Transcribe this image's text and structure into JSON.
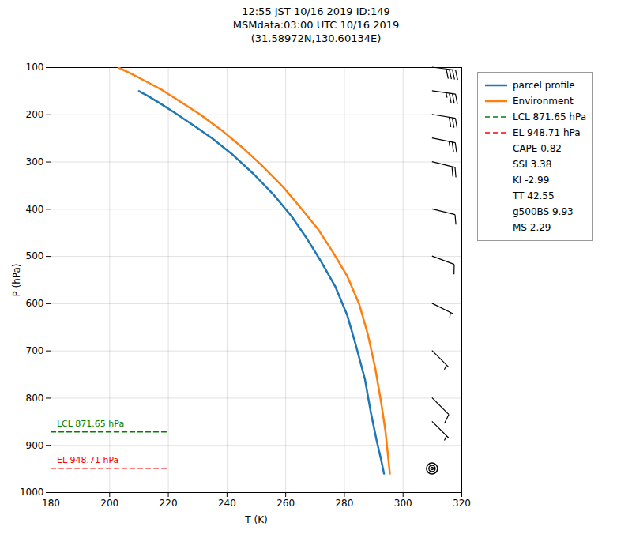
{
  "chart_data": {
    "type": "line",
    "title": "12:55 JST 10/16 2019  ID:149\nMSMdata:03:00 UTC 10/16 2019\n(31.58972N,130.60134E)",
    "xlabel": "T (K)",
    "ylabel": "P (hPa)",
    "xlim": [
      180,
      320
    ],
    "ylim": [
      1000,
      100
    ],
    "xticks": [
      180,
      200,
      220,
      240,
      260,
      280,
      300,
      320
    ],
    "yticks": [
      100,
      200,
      300,
      400,
      500,
      600,
      700,
      800,
      900,
      1000
    ],
    "grid": true,
    "legend": "right",
    "series": [
      {
        "name": "parcel profile",
        "color": "#1f77b4",
        "line_style": "solid",
        "x": [
          210,
          213,
          217,
          222,
          228,
          235,
          242,
          249,
          256,
          262,
          267,
          272,
          277,
          281,
          284,
          287,
          289,
          291,
          292.5,
          293.5
        ],
        "values": [
          150,
          160,
          175,
          195,
          220,
          250,
          285,
          325,
          370,
          415,
          460,
          510,
          565,
          625,
          690,
          760,
          830,
          890,
          930,
          960
        ]
      },
      {
        "name": "Environment",
        "color": "#ff7f0e",
        "line_style": "solid",
        "x": [
          203,
          207,
          212,
          218,
          224,
          231,
          238,
          245,
          252,
          259,
          265,
          271,
          276,
          281,
          285,
          288,
          290.5,
          292.5,
          294,
          295.5
        ],
        "values": [
          100,
          112,
          128,
          148,
          172,
          200,
          232,
          268,
          308,
          352,
          396,
          442,
          490,
          542,
          600,
          665,
          736,
          808,
          870,
          960
        ]
      },
      {
        "name": "LCL 871.65 hPa",
        "color": "green",
        "line_style": "dashed",
        "x": [
          180,
          220
        ],
        "values": [
          871.65,
          871.65
        ]
      },
      {
        "name": "EL 948.71 hPa",
        "color": "red",
        "line_style": "dashed",
        "x": [
          180,
          220
        ],
        "values": [
          948.71,
          948.71
        ]
      }
    ],
    "annotations": [
      {
        "text": "LCL 871.65 hPa",
        "x": 182,
        "y": 859.65,
        "color": "green"
      },
      {
        "text": "EL 948.71 hPa",
        "x": 182,
        "y": 936.71,
        "color": "red"
      }
    ],
    "legend_notes": [
      "CAPE 0.82",
      "SSI 3.38",
      "KI -2.99",
      "TT 42.55",
      "g500BS 9.93",
      "MS 2.29"
    ],
    "wind": {
      "x": 310,
      "pressures": [
        100,
        150,
        200,
        250,
        300,
        400,
        500,
        600,
        700,
        800,
        850,
        950
      ],
      "u": [
        -40,
        -35,
        -30,
        -25,
        -20,
        -12,
        -8,
        -6,
        -5,
        -8,
        -5,
        0
      ],
      "v": [
        5,
        5,
        5,
        5,
        5,
        3,
        3,
        3,
        5,
        8,
        5,
        0
      ]
    }
  }
}
